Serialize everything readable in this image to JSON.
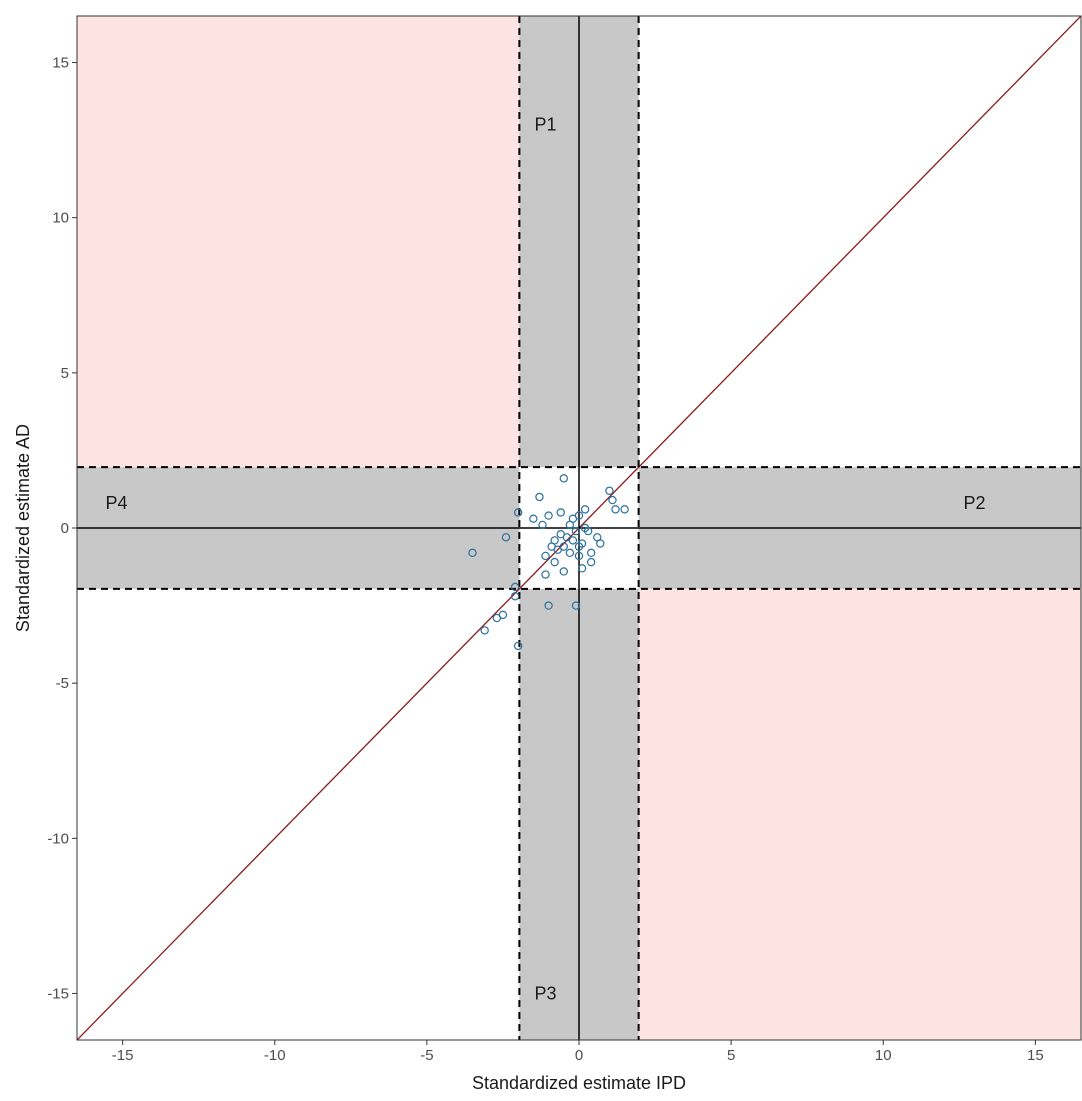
{
  "chart_data": {
    "type": "scatter",
    "xlabel": "Standardized estimate IPD",
    "ylabel": "Standardized estimate AD",
    "xlim": [
      -16.5,
      16.5
    ],
    "ylim": [
      -16.5,
      16.5
    ],
    "x_ticks": [
      -15,
      -10,
      -5,
      0,
      5,
      10,
      15
    ],
    "y_ticks": [
      -15,
      -10,
      -5,
      0,
      5,
      10,
      15
    ],
    "tick_labels": [
      "-15",
      "-10",
      "-5",
      "0",
      "5",
      "10",
      "15"
    ],
    "threshold": 1.96,
    "grid": false,
    "reference_line": {
      "slope": 1,
      "intercept": 0,
      "color": "#8b1a1a"
    },
    "region_labels": [
      {
        "text": "P1",
        "x": -1.1,
        "y": 13
      },
      {
        "text": "P2",
        "x": 13,
        "y": 0.8
      },
      {
        "text": "P3",
        "x": -1.1,
        "y": -15
      },
      {
        "text": "P4",
        "x": -15.2,
        "y": 0.8
      }
    ],
    "colors": {
      "discordant_fill": "#fde3e1",
      "band_fill": "#c8c8c8",
      "points": "#2b6f9e",
      "axes": "#000000"
    },
    "points": [
      [
        -0.5,
        1.6
      ],
      [
        -1.3,
        1.0
      ],
      [
        -1.5,
        0.3
      ],
      [
        -1.0,
        0.4
      ],
      [
        -1.2,
        0.1
      ],
      [
        -0.6,
        0.5
      ],
      [
        -0.2,
        0.3
      ],
      [
        0.0,
        0.4
      ],
      [
        -0.3,
        0.1
      ],
      [
        0.2,
        0.0
      ],
      [
        -0.1,
        -0.1
      ],
      [
        -0.4,
        -0.3
      ],
      [
        -0.2,
        -0.4
      ],
      [
        0.1,
        -0.5
      ],
      [
        -0.5,
        -0.6
      ],
      [
        -0.7,
        -0.7
      ],
      [
        -0.9,
        -0.6
      ],
      [
        -0.3,
        -0.8
      ],
      [
        0.0,
        -0.9
      ],
      [
        0.4,
        -0.8
      ],
      [
        0.6,
        -0.3
      ],
      [
        0.7,
        -0.5
      ],
      [
        1.0,
        1.2
      ],
      [
        1.1,
        0.9
      ],
      [
        1.2,
        0.6
      ],
      [
        1.5,
        0.6
      ],
      [
        -1.1,
        -0.9
      ],
      [
        -0.8,
        -1.1
      ],
      [
        -1.1,
        -1.5
      ],
      [
        -0.5,
        -1.4
      ],
      [
        0.1,
        -1.3
      ],
      [
        0.4,
        -1.1
      ],
      [
        -2.0,
        0.5
      ],
      [
        -2.4,
        -0.3
      ],
      [
        -3.5,
        -0.8
      ],
      [
        -2.1,
        -1.9
      ],
      [
        -2.1,
        -2.2
      ],
      [
        -2.5,
        -2.8
      ],
      [
        -2.7,
        -2.9
      ],
      [
        -3.1,
        -3.3
      ],
      [
        -2.0,
        -3.8
      ],
      [
        -1.0,
        -2.5
      ],
      [
        -0.1,
        -2.5
      ],
      [
        0.3,
        -0.1
      ],
      [
        -0.6,
        -0.2
      ],
      [
        0.2,
        0.6
      ],
      [
        -0.8,
        -0.4
      ],
      [
        0.0,
        -0.6
      ]
    ]
  }
}
